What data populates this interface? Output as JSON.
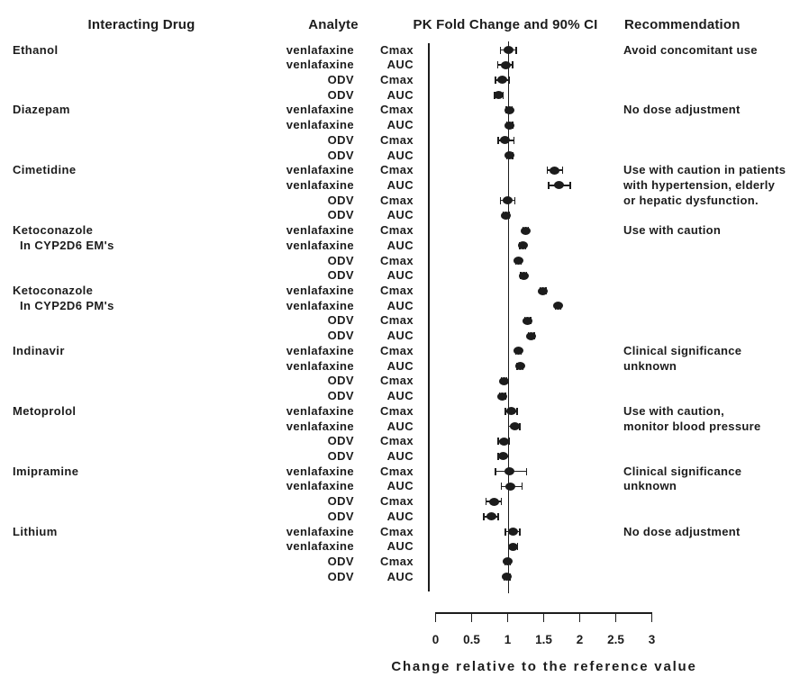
{
  "headers": {
    "interacting_drug": "Interacting Drug",
    "analyte": "Analyte",
    "pk": "PK Fold Change and 90% CI",
    "recommendation": "Recommendation"
  },
  "chart_data": {
    "type": "scatter",
    "subtype": "forest-plot",
    "xlabel": "Change relative to the reference value",
    "x_ticks": [
      0,
      0.5,
      1,
      1.5,
      2,
      2.5,
      3
    ],
    "xlim": [
      0,
      3
    ],
    "reference_line": 1,
    "grid": false,
    "legend": "none",
    "groups": [
      {
        "drug": "Ethanol",
        "drug_line2": "",
        "recommendation": [
          "Avoid concomitant use"
        ],
        "rows": [
          {
            "analyte": "venlafaxine",
            "metric": "Cmax",
            "value": 1.01,
            "ci_lo": 0.9,
            "ci_hi": 1.12
          },
          {
            "analyte": "venlafaxine",
            "metric": "AUC",
            "value": 0.97,
            "ci_lo": 0.86,
            "ci_hi": 1.07
          },
          {
            "analyte": "ODV",
            "metric": "Cmax",
            "value": 0.92,
            "ci_lo": 0.83,
            "ci_hi": 1.02
          },
          {
            "analyte": "ODV",
            "metric": "AUC",
            "value": 0.88,
            "ci_lo": 0.82,
            "ci_hi": 0.94
          }
        ]
      },
      {
        "drug": "Diazepam",
        "drug_line2": "",
        "recommendation": [
          "No dose adjustment"
        ],
        "rows": [
          {
            "analyte": "venlafaxine",
            "metric": "Cmax",
            "value": 1.02,
            "ci_lo": 0.98,
            "ci_hi": 1.06
          },
          {
            "analyte": "venlafaxine",
            "metric": "AUC",
            "value": 1.03,
            "ci_lo": 0.99,
            "ci_hi": 1.07
          },
          {
            "analyte": "ODV",
            "metric": "Cmax",
            "value": 0.96,
            "ci_lo": 0.87,
            "ci_hi": 1.09
          },
          {
            "analyte": "ODV",
            "metric": "AUC",
            "value": 1.03,
            "ci_lo": 0.99,
            "ci_hi": 1.07
          }
        ]
      },
      {
        "drug": "Cimetidine",
        "drug_line2": "",
        "recommendation": [
          "Use with caution in patients",
          "with hypertension, elderly",
          "or hepatic dysfunction."
        ],
        "rows": [
          {
            "analyte": "venlafaxine",
            "metric": "Cmax",
            "value": 1.65,
            "ci_lo": 1.55,
            "ci_hi": 1.76
          },
          {
            "analyte": "venlafaxine",
            "metric": "AUC",
            "value": 1.71,
            "ci_lo": 1.57,
            "ci_hi": 1.87
          },
          {
            "analyte": "ODV",
            "metric": "Cmax",
            "value": 1.0,
            "ci_lo": 0.9,
            "ci_hi": 1.1
          },
          {
            "analyte": "ODV",
            "metric": "AUC",
            "value": 0.98,
            "ci_lo": 0.94,
            "ci_hi": 1.02
          }
        ]
      },
      {
        "drug": "Ketoconazole",
        "drug_line2": "In CYP2D6 EM's",
        "recommendation": [
          "Use with caution"
        ],
        "rows": [
          {
            "analyte": "venlafaxine",
            "metric": "Cmax",
            "value": 1.25,
            "ci_lo": 1.21,
            "ci_hi": 1.29
          },
          {
            "analyte": "venlafaxine",
            "metric": "AUC",
            "value": 1.21,
            "ci_lo": 1.17,
            "ci_hi": 1.25
          },
          {
            "analyte": "ODV",
            "metric": "Cmax",
            "value": 1.15,
            "ci_lo": 1.11,
            "ci_hi": 1.19
          },
          {
            "analyte": "ODV",
            "metric": "AUC",
            "value": 1.22,
            "ci_lo": 1.18,
            "ci_hi": 1.26
          }
        ]
      },
      {
        "drug": "Ketoconazole",
        "drug_line2": "In CYP2D6 PM's",
        "recommendation": [],
        "rows": [
          {
            "analyte": "venlafaxine",
            "metric": "Cmax",
            "value": 1.49,
            "ci_lo": 1.45,
            "ci_hi": 1.53
          },
          {
            "analyte": "venlafaxine",
            "metric": "AUC",
            "value": 1.7,
            "ci_lo": 1.66,
            "ci_hi": 1.74
          },
          {
            "analyte": "ODV",
            "metric": "Cmax",
            "value": 1.28,
            "ci_lo": 1.24,
            "ci_hi": 1.32
          },
          {
            "analyte": "ODV",
            "metric": "AUC",
            "value": 1.33,
            "ci_lo": 1.29,
            "ci_hi": 1.37
          }
        ]
      },
      {
        "drug": "Indinavir",
        "drug_line2": "",
        "recommendation": [
          "Clinical significance",
          "unknown"
        ],
        "rows": [
          {
            "analyte": "venlafaxine",
            "metric": "Cmax",
            "value": 1.15,
            "ci_lo": 1.11,
            "ci_hi": 1.19
          },
          {
            "analyte": "venlafaxine",
            "metric": "AUC",
            "value": 1.17,
            "ci_lo": 1.13,
            "ci_hi": 1.21
          },
          {
            "analyte": "ODV",
            "metric": "Cmax",
            "value": 0.95,
            "ci_lo": 0.91,
            "ci_hi": 0.99
          },
          {
            "analyte": "ODV",
            "metric": "AUC",
            "value": 0.93,
            "ci_lo": 0.89,
            "ci_hi": 0.97
          }
        ]
      },
      {
        "drug": "Metoprolol",
        "drug_line2": "",
        "recommendation": [
          "Use with caution,",
          "monitor blood pressure"
        ],
        "rows": [
          {
            "analyte": "venlafaxine",
            "metric": "Cmax",
            "value": 1.05,
            "ci_lo": 0.97,
            "ci_hi": 1.13
          },
          {
            "analyte": "venlafaxine",
            "metric": "AUC",
            "value": 1.1,
            "ci_lo": 1.01,
            "ci_hi": 1.17
          },
          {
            "analyte": "ODV",
            "metric": "Cmax",
            "value": 0.95,
            "ci_lo": 0.87,
            "ci_hi": 1.02
          },
          {
            "analyte": "ODV",
            "metric": "AUC",
            "value": 0.94,
            "ci_lo": 0.87,
            "ci_hi": 1.01
          }
        ]
      },
      {
        "drug": "Imipramine",
        "drug_line2": "",
        "recommendation": [
          "Clinical significance",
          "unknown"
        ],
        "rows": [
          {
            "analyte": "venlafaxine",
            "metric": "Cmax",
            "value": 1.02,
            "ci_lo": 0.83,
            "ci_hi": 1.26
          },
          {
            "analyte": "venlafaxine",
            "metric": "AUC",
            "value": 1.04,
            "ci_lo": 0.91,
            "ci_hi": 1.2
          },
          {
            "analyte": "ODV",
            "metric": "Cmax",
            "value": 0.81,
            "ci_lo": 0.7,
            "ci_hi": 0.91
          },
          {
            "analyte": "ODV",
            "metric": "AUC",
            "value": 0.78,
            "ci_lo": 0.67,
            "ci_hi": 0.87
          }
        ]
      },
      {
        "drug": "Lithium",
        "drug_line2": "",
        "recommendation": [
          "No dose adjustment"
        ],
        "rows": [
          {
            "analyte": "venlafaxine",
            "metric": "Cmax",
            "value": 1.07,
            "ci_lo": 0.97,
            "ci_hi": 1.17
          },
          {
            "analyte": "venlafaxine",
            "metric": "AUC",
            "value": 1.08,
            "ci_lo": 1.01,
            "ci_hi": 1.14
          },
          {
            "analyte": "ODV",
            "metric": "Cmax",
            "value": 1.0,
            "ci_lo": 0.96,
            "ci_hi": 1.04
          },
          {
            "analyte": "ODV",
            "metric": "AUC",
            "value": 0.99,
            "ci_lo": 0.95,
            "ci_hi": 1.03
          }
        ]
      }
    ],
    "colors": {
      "marker": "#1c1c1c",
      "line": "#1c1c1c",
      "text": "#1c1c1c",
      "background": "#ffffff"
    }
  }
}
